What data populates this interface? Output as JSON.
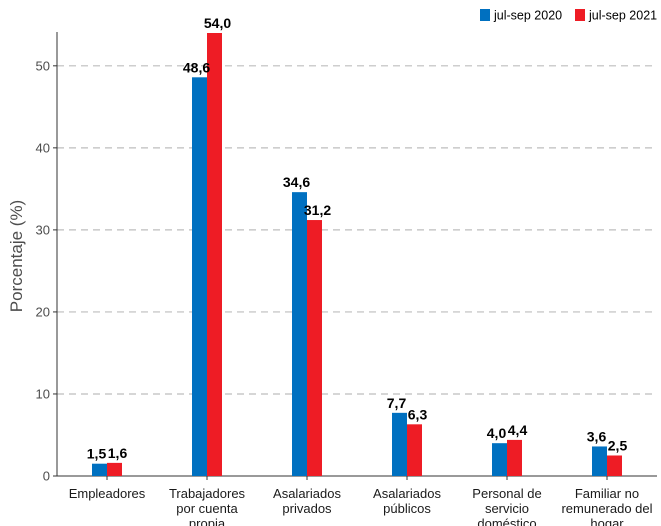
{
  "chart_data": {
    "type": "bar",
    "title": "",
    "xlabel": "",
    "ylabel": "Porcentaje (%)",
    "ylim": [
      0,
      54
    ],
    "yticks": [
      0,
      10,
      20,
      30,
      40,
      50
    ],
    "grid": "horizontal-dashed",
    "legend_position": "top-right",
    "categories": [
      [
        "Empleadores"
      ],
      [
        "Trabajadores",
        "por cuenta",
        "propia"
      ],
      [
        "Asalariados",
        "privados"
      ],
      [
        "Asalariados",
        "públicos"
      ],
      [
        "Personal de",
        "servicio",
        "doméstico"
      ],
      [
        "Familiar no",
        "remunerado del",
        "hogar"
      ]
    ],
    "series": [
      {
        "name": "jul-sep 2020",
        "color": "#0070c0",
        "values": [
          1.5,
          48.6,
          34.6,
          7.7,
          4.0,
          3.6
        ],
        "labels": [
          "1,5",
          "48,6",
          "34,6",
          "7,7",
          "4,0",
          "3,6"
        ]
      },
      {
        "name": "jul-sep 2021",
        "color": "#ee1c25",
        "values": [
          1.6,
          54.0,
          31.2,
          6.3,
          4.4,
          2.5
        ],
        "labels": [
          "1,6",
          "54,0",
          "31,2",
          "6,3",
          "4,4",
          "2,5"
        ]
      }
    ]
  }
}
